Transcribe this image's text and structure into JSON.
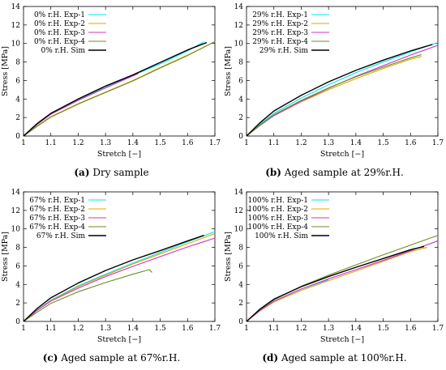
{
  "chart_data": [
    {
      "type": "line",
      "tag": "(a)",
      "caption": "Dry sample",
      "xlabel": "Stretch [−]",
      "ylabel": "Stress [MPa]",
      "xlim": [
        1,
        1.7
      ],
      "ylim": [
        0,
        14
      ],
      "xticks": [
        "1",
        "1.1",
        "1.2",
        "1.3",
        "1.4",
        "1.5",
        "1.6",
        "1.7"
      ],
      "yticks": [
        "0",
        "2",
        "4",
        "6",
        "8",
        "10",
        "12",
        "14"
      ],
      "grid": false,
      "legend_position": "top-left",
      "series": [
        {
          "name": "0% r.H. Exp-1",
          "color": "#00e5ee",
          "x": [
            1,
            1.05,
            1.1,
            1.2,
            1.3,
            1.4,
            1.5,
            1.6,
            1.66
          ],
          "y": [
            0,
            1.3,
            2.4,
            3.95,
            5.25,
            6.55,
            7.8,
            9.2,
            10.2
          ]
        },
        {
          "name": "0% r.H. Exp-2",
          "color": "#e0a800",
          "x": [
            1,
            1.05,
            1.1,
            1.2,
            1.3,
            1.4,
            1.5,
            1.6,
            1.7
          ],
          "y": [
            0,
            1.1,
            2.1,
            3.5,
            4.75,
            6.0,
            7.4,
            8.75,
            10.2
          ]
        },
        {
          "name": "0% r.H. Exp-3",
          "color": "#cc33cc",
          "x": [
            1,
            1.05,
            1.1,
            1.2,
            1.3,
            1.4,
            1.42
          ],
          "y": [
            0,
            1.25,
            2.35,
            3.85,
            5.2,
            6.5,
            6.75
          ]
        },
        {
          "name": "0% r.H. Exp-4",
          "color": "#6b8e23",
          "x": [
            1,
            1.05,
            1.1,
            1.2,
            1.3,
            1.4,
            1.5,
            1.6,
            1.7
          ],
          "y": [
            0,
            1.05,
            2.05,
            3.45,
            4.7,
            5.95,
            7.35,
            8.7,
            10.2
          ]
        },
        {
          "name": "0% r.H. Sim",
          "color": "#000000",
          "x": [
            1,
            1.05,
            1.1,
            1.2,
            1.3,
            1.4,
            1.5,
            1.6,
            1.67
          ],
          "y": [
            0,
            1.35,
            2.45,
            4.0,
            5.4,
            6.6,
            7.95,
            9.3,
            10.1
          ]
        }
      ]
    },
    {
      "type": "line",
      "tag": "(b)",
      "caption": "Aged sample at 29%r.H.",
      "xlabel": "Stretch [−]",
      "ylabel": "Stress [MPa]",
      "xlim": [
        1,
        1.7
      ],
      "ylim": [
        0,
        14
      ],
      "xticks": [
        "1",
        "1.1",
        "1.2",
        "1.3",
        "1.4",
        "1.5",
        "1.6",
        "1.7"
      ],
      "yticks": [
        "0",
        "2",
        "4",
        "6",
        "8",
        "10",
        "12",
        "14"
      ],
      "grid": false,
      "legend_position": "top-left",
      "series": [
        {
          "name": "29% r.H. Exp-1",
          "color": "#00e5ee",
          "x": [
            1,
            1.05,
            1.1,
            1.2,
            1.3,
            1.4,
            1.5,
            1.6,
            1.7
          ],
          "y": [
            0,
            1.3,
            2.45,
            4.1,
            5.55,
            6.85,
            8.0,
            9.1,
            10.1
          ]
        },
        {
          "name": "29% r.H. Exp-2",
          "color": "#e0a800",
          "x": [
            1,
            1.05,
            1.1,
            1.2,
            1.3,
            1.4,
            1.5,
            1.6,
            1.64
          ],
          "y": [
            0,
            1.15,
            2.2,
            3.7,
            5.0,
            6.2,
            7.3,
            8.3,
            8.6
          ]
        },
        {
          "name": "29% r.H. Exp-3",
          "color": "#cc33cc",
          "x": [
            1,
            1.05,
            1.1,
            1.2,
            1.3,
            1.4,
            1.5,
            1.6,
            1.7
          ],
          "y": [
            0,
            1.15,
            2.2,
            3.75,
            5.15,
            6.45,
            7.6,
            8.75,
            9.8
          ]
        },
        {
          "name": "29% r.H. Exp-4",
          "color": "#6b8e23",
          "x": [
            1,
            1.05,
            1.1,
            1.2,
            1.3,
            1.4,
            1.5,
            1.6,
            1.64
          ],
          "y": [
            0,
            1.2,
            2.3,
            3.85,
            5.2,
            6.4,
            7.45,
            8.45,
            8.8
          ]
        },
        {
          "name": "29% r.H. Sim",
          "color": "#000000",
          "x": [
            1,
            1.05,
            1.1,
            1.2,
            1.3,
            1.4,
            1.5,
            1.6,
            1.68
          ],
          "y": [
            0,
            1.45,
            2.7,
            4.4,
            5.85,
            7.1,
            8.2,
            9.2,
            9.9
          ]
        }
      ]
    },
    {
      "type": "line",
      "tag": "(c)",
      "caption": "Aged sample at 67%r.H.",
      "xlabel": "Stretch [−]",
      "ylabel": "Stress [MPa]",
      "xlim": [
        1,
        1.7
      ],
      "ylim": [
        0,
        14
      ],
      "xticks": [
        "1",
        "1.1",
        "1.2",
        "1.3",
        "1.4",
        "1.5",
        "1.6",
        "1.7"
      ],
      "yticks": [
        "0",
        "2",
        "4",
        "6",
        "8",
        "10",
        "12",
        "14"
      ],
      "grid": false,
      "legend_position": "top-left",
      "series": [
        {
          "name": "67% r.H. Exp-1",
          "color": "#00e5ee",
          "x": [
            1,
            1.05,
            1.1,
            1.2,
            1.3,
            1.4,
            1.5,
            1.6,
            1.7
          ],
          "y": [
            0,
            1.25,
            2.3,
            3.85,
            5.1,
            6.3,
            7.45,
            8.6,
            9.7
          ]
        },
        {
          "name": "67% r.H. Exp-2",
          "color": "#e0a800",
          "x": [
            1,
            1.05,
            1.1,
            1.2,
            1.3,
            1.4,
            1.5,
            1.6,
            1.7
          ],
          "y": [
            0,
            1.2,
            2.25,
            3.75,
            5.0,
            6.2,
            7.3,
            8.4,
            9.5
          ]
        },
        {
          "name": "67% r.H. Exp-3",
          "color": "#cc33cc",
          "x": [
            1,
            1.05,
            1.1,
            1.2,
            1.3,
            1.4,
            1.5,
            1.6,
            1.7
          ],
          "y": [
            0,
            1.2,
            2.2,
            3.6,
            4.85,
            5.95,
            7.0,
            8.05,
            9.0
          ]
        },
        {
          "name": "67% r.H. Exp-4",
          "color": "#6b8e23",
          "x": [
            1,
            1.05,
            1.1,
            1.2,
            1.3,
            1.4,
            1.46,
            1.47
          ],
          "y": [
            0,
            1.0,
            1.95,
            3.2,
            4.2,
            5.1,
            5.6,
            5.3
          ]
        },
        {
          "name": "67% r.H. Sim",
          "color": "#000000",
          "x": [
            1,
            1.05,
            1.1,
            1.2,
            1.3,
            1.4,
            1.5,
            1.6,
            1.66
          ],
          "y": [
            0,
            1.4,
            2.55,
            4.15,
            5.5,
            6.65,
            7.65,
            8.7,
            9.3
          ]
        }
      ]
    },
    {
      "type": "line",
      "tag": "(d)",
      "caption": "Aged sample at 100%r.H.",
      "xlabel": "Stretch [−]",
      "ylabel": "Stress [MPa]",
      "xlim": [
        1,
        1.7
      ],
      "ylim": [
        0,
        14
      ],
      "xticks": [
        "1",
        "1.1",
        "1.2",
        "1.3",
        "1.4",
        "1.5",
        "1.6",
        "1.7"
      ],
      "yticks": [
        "0",
        "2",
        "4",
        "6",
        "8",
        "10",
        "12",
        "14"
      ],
      "grid": false,
      "legend_position": "top-left",
      "series": [
        {
          "name": "100% r.H. Exp-1",
          "color": "#00e5ee",
          "x": [
            1,
            1.05,
            1.1,
            1.2,
            1.3
          ],
          "y": [
            0,
            1.2,
            2.2,
            3.5,
            4.5
          ]
        },
        {
          "name": "100% r.H. Exp-2",
          "color": "#e0a800",
          "x": [
            1,
            1.05,
            1.1,
            1.2,
            1.3,
            1.4,
            1.5,
            1.6,
            1.66
          ],
          "y": [
            0,
            1.15,
            2.1,
            3.35,
            4.4,
            5.45,
            6.5,
            7.55,
            8.0
          ]
        },
        {
          "name": "100% r.H. Exp-3",
          "color": "#cc33cc",
          "x": [
            1,
            1.05,
            1.1,
            1.2,
            1.3,
            1.4,
            1.5,
            1.6,
            1.7
          ],
          "y": [
            0,
            1.2,
            2.2,
            3.5,
            4.6,
            5.6,
            6.6,
            7.65,
            8.7
          ]
        },
        {
          "name": "100% r.H. Exp-4",
          "color": "#6b8e23",
          "x": [
            1,
            1.05,
            1.1,
            1.2,
            1.3,
            1.4,
            1.5,
            1.6,
            1.7
          ],
          "y": [
            0,
            1.3,
            2.35,
            3.8,
            5.0,
            6.1,
            7.2,
            8.25,
            9.3
          ]
        },
        {
          "name": "100% r.H. Sim",
          "color": "#000000",
          "x": [
            1,
            1.05,
            1.1,
            1.2,
            1.3,
            1.4,
            1.5,
            1.6,
            1.65
          ],
          "y": [
            0,
            1.35,
            2.4,
            3.75,
            4.85,
            5.85,
            6.8,
            7.75,
            8.1
          ]
        }
      ]
    }
  ]
}
